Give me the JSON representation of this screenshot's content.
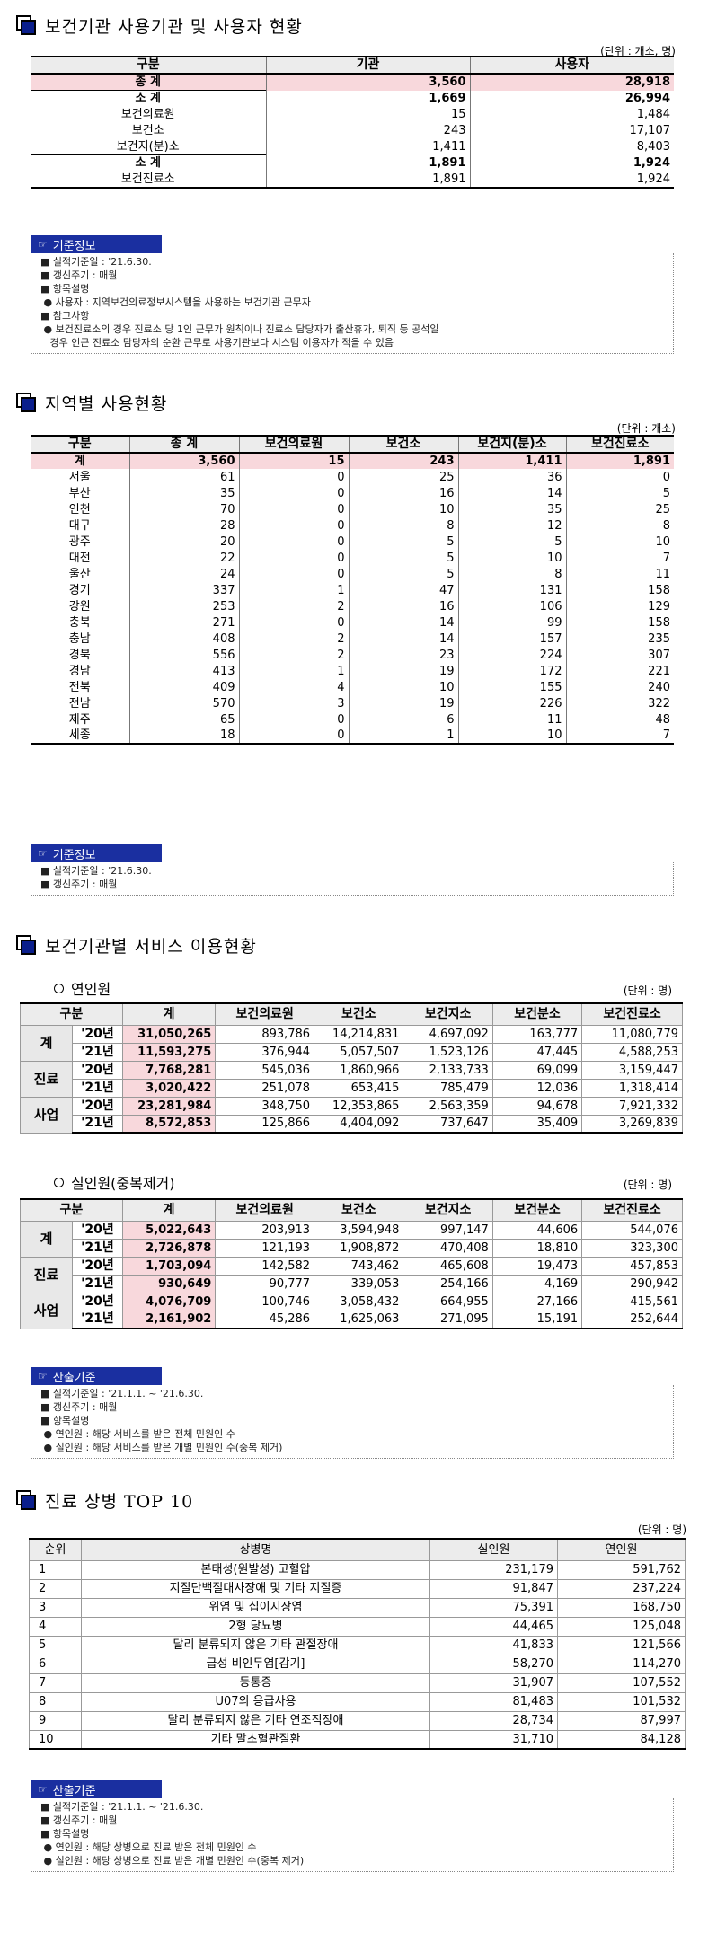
{
  "sec1": {
    "title": "보건기관 사용기관 및 사용자 현황",
    "unit": "(단위 : 개소, 명)",
    "headers": [
      "구분",
      "기관",
      "사용자"
    ],
    "rows": [
      {
        "label": "종 계",
        "a": "3,560",
        "b": "28,918",
        "style": "total"
      },
      {
        "label": "소 계",
        "a": "1,669",
        "b": "26,994",
        "style": "sub"
      },
      {
        "label": "보건의료원",
        "a": "15",
        "b": "1,484",
        "style": ""
      },
      {
        "label": "보건소",
        "a": "243",
        "b": "17,107",
        "style": ""
      },
      {
        "label": "보건지(분)소",
        "a": "1,411",
        "b": "8,403",
        "style": ""
      },
      {
        "label": "소 계",
        "a": "1,891",
        "b": "1,924",
        "style": "sub"
      },
      {
        "label": "보건진료소",
        "a": "1,891",
        "b": "1,924",
        "style": ""
      }
    ],
    "info_title": "기준정보",
    "info_lines": [
      "■ 실적기준일 : '21.6.30.",
      "■ 갱신주기 : 매월",
      "■ 항목설명",
      " ● 사용자 : 지역보건의료정보시스템을 사용하는 보건기관 근무자",
      "■ 참고사항",
      " ● 보건진료소의 경우 진료소 당 1인 근무가 원칙이나 진료소 담당자가 출산휴가, 퇴직 등 공석일",
      "   경우 인근 진료소 담당자의 순환 근무로 사용기관보다 시스템 이용자가 적을 수 있음"
    ]
  },
  "sec2": {
    "title": "지역별 사용현황",
    "unit": "(단위 : 개소)",
    "headers": [
      "구분",
      "종 계",
      "보건의료원",
      "보건소",
      "보건지(분)소",
      "보건진료소"
    ],
    "total": [
      "계",
      "3,560",
      "15",
      "243",
      "1,411",
      "1,891"
    ],
    "rows": [
      [
        "서울",
        "61",
        "0",
        "25",
        "36",
        "0"
      ],
      [
        "부산",
        "35",
        "0",
        "16",
        "14",
        "5"
      ],
      [
        "인천",
        "70",
        "0",
        "10",
        "35",
        "25"
      ],
      [
        "대구",
        "28",
        "0",
        "8",
        "12",
        "8"
      ],
      [
        "광주",
        "20",
        "0",
        "5",
        "5",
        "10"
      ],
      [
        "대전",
        "22",
        "0",
        "5",
        "10",
        "7"
      ],
      [
        "울산",
        "24",
        "0",
        "5",
        "8",
        "11"
      ],
      [
        "경기",
        "337",
        "1",
        "47",
        "131",
        "158"
      ],
      [
        "강원",
        "253",
        "2",
        "16",
        "106",
        "129"
      ],
      [
        "충북",
        "271",
        "0",
        "14",
        "99",
        "158"
      ],
      [
        "충남",
        "408",
        "2",
        "14",
        "157",
        "235"
      ],
      [
        "경북",
        "556",
        "2",
        "23",
        "224",
        "307"
      ],
      [
        "경남",
        "413",
        "1",
        "19",
        "172",
        "221"
      ],
      [
        "전북",
        "409",
        "4",
        "10",
        "155",
        "240"
      ],
      [
        "전남",
        "570",
        "3",
        "19",
        "226",
        "322"
      ],
      [
        "제주",
        "65",
        "0",
        "6",
        "11",
        "48"
      ],
      [
        "세종",
        "18",
        "0",
        "1",
        "10",
        "7"
      ]
    ],
    "info_title": "기준정보",
    "info_lines": [
      "■ 실적기준일 : '21.6.30.",
      "■ 갱신주기 : 매월"
    ]
  },
  "sec3": {
    "title": "보건기관별 서비스 이용현황",
    "sub1": "연인원",
    "sub2": "실인원(중복제거)",
    "unit": "(단위 : 명)",
    "headers": [
      "구분",
      "계",
      "보건의료원",
      "보건소",
      "보건지소",
      "보건분소",
      "보건진료소"
    ],
    "groups": [
      "계",
      "진료",
      "사업"
    ],
    "years": [
      "'20년",
      "'21년"
    ],
    "t1": [
      [
        "31,050,265",
        "893,786",
        "14,214,831",
        "4,697,092",
        "163,777",
        "11,080,779"
      ],
      [
        "11,593,275",
        "376,944",
        "5,057,507",
        "1,523,126",
        "47,445",
        "4,588,253"
      ],
      [
        "7,768,281",
        "545,036",
        "1,860,966",
        "2,133,733",
        "69,099",
        "3,159,447"
      ],
      [
        "3,020,422",
        "251,078",
        "653,415",
        "785,479",
        "12,036",
        "1,318,414"
      ],
      [
        "23,281,984",
        "348,750",
        "12,353,865",
        "2,563,359",
        "94,678",
        "7,921,332"
      ],
      [
        "8,572,853",
        "125,866",
        "4,404,092",
        "737,647",
        "35,409",
        "3,269,839"
      ]
    ],
    "t2": [
      [
        "5,022,643",
        "203,913",
        "3,594,948",
        "997,147",
        "44,606",
        "544,076"
      ],
      [
        "2,726,878",
        "121,193",
        "1,908,872",
        "470,408",
        "18,810",
        "323,300"
      ],
      [
        "1,703,094",
        "142,582",
        "743,462",
        "465,608",
        "19,473",
        "457,853"
      ],
      [
        "930,649",
        "90,777",
        "339,053",
        "254,166",
        "4,169",
        "290,942"
      ],
      [
        "4,076,709",
        "100,746",
        "3,058,432",
        "664,955",
        "27,166",
        "415,561"
      ],
      [
        "2,161,902",
        "45,286",
        "1,625,063",
        "271,095",
        "15,191",
        "252,644"
      ]
    ],
    "info_title": "산출기준",
    "info_lines": [
      "■ 실적기준일 : '21.1.1. ~ '21.6.30.",
      "■ 갱신주기 : 매월",
      "■ 항목설명",
      " ● 연인원 : 해당 서비스를 받은 전체 민원인 수",
      " ● 실인원 : 해당 서비스를 받은 개별 민원인 수(중복 제거)"
    ]
  },
  "sec4": {
    "title": "진료 상병 TOP 10",
    "unit": "(단위 : 명)",
    "headers": [
      "순위",
      "상병명",
      "실인원",
      "연인원"
    ],
    "rows": [
      [
        "1",
        "본태성(원발성) 고혈압",
        "231,179",
        "591,762"
      ],
      [
        "2",
        "지질단백질대사장애 및 기타 지질증",
        "91,847",
        "237,224"
      ],
      [
        "3",
        "위염 및 십이지장염",
        "75,391",
        "168,750"
      ],
      [
        "4",
        "2형 당뇨병",
        "44,465",
        "125,048"
      ],
      [
        "5",
        "달리 분류되지 않은 기타 관절장애",
        "41,833",
        "121,566"
      ],
      [
        "6",
        "급성 비인두염[감기]",
        "58,270",
        "114,270"
      ],
      [
        "7",
        "등통증",
        "31,907",
        "107,552"
      ],
      [
        "8",
        "U07의 응급사용",
        "81,483",
        "101,532"
      ],
      [
        "9",
        "달리 분류되지 않은 기타 연조직장애",
        "28,734",
        "87,997"
      ],
      [
        "10",
        "기타 말초혈관질환",
        "31,710",
        "84,128"
      ]
    ],
    "info_title": "산출기준",
    "info_lines": [
      "■ 실적기준일 : '21.1.1. ~ '21.6.30.",
      "■ 갱신주기 : 매월",
      "■ 항목설명",
      " ● 연인원 : 해당 상병으로 진료 받은 전체 민원인 수",
      " ● 실인원 : 해당 상병으로 진료 받은 개별 민원인 수(중복 제거)"
    ]
  },
  "icons": {
    "info": "hand-pointer-icon",
    "title_marker": "square-marker-icon"
  }
}
